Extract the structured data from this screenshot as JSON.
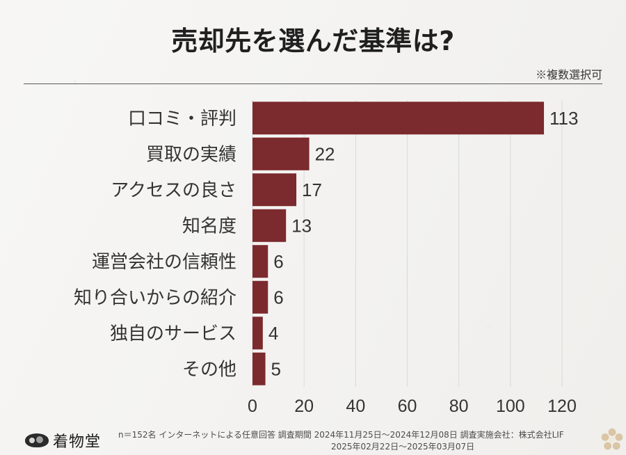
{
  "header": {
    "title": "売却先を選んだ基準は?",
    "note": "※複数選択可"
  },
  "chart_data": {
    "type": "bar",
    "orientation": "horizontal",
    "categories": [
      "口コミ・評判",
      "買取の実績",
      "アクセスの良さ",
      "知名度",
      "運営会社の信頼性",
      "知り合いからの紹介",
      "独自のサービス",
      "その他"
    ],
    "values": [
      113,
      22,
      17,
      13,
      6,
      6,
      4,
      5
    ],
    "xlim": [
      0,
      120
    ],
    "x_ticks": [
      0,
      20,
      40,
      60,
      80,
      100,
      120
    ],
    "grid": true,
    "bar_color": "#7b2a2e",
    "title": "売却先を選んだ基準は?",
    "xlabel": "",
    "ylabel": ""
  },
  "footer": {
    "line1": "n＝152名 インターネットによる任意回答 調査期間 2024年11月25日〜2024年12月08日 調査実施会社：株式会社LIF",
    "line2": "2025年02月22日〜2025年03月07日",
    "logo_text": "着物堂",
    "logo_icon": "fan-logo-icon"
  },
  "colors": {
    "background": "#f3f2f0",
    "bar": "#7b2a2e",
    "grid": "#d9d9d9",
    "text": "#333333"
  }
}
